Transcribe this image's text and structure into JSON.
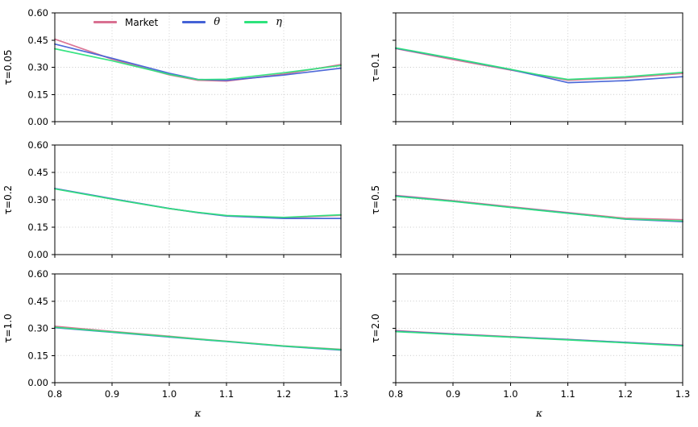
{
  "chart_data": {
    "type": "line",
    "layout": {
      "rows": 3,
      "cols": 2,
      "grid": "dotted",
      "legend_position": "top-left-panel, frameless"
    },
    "xlabel": "κ",
    "xlim": [
      0.8,
      1.3
    ],
    "ylim": [
      0.0,
      0.6
    ],
    "xticks": [
      "0.8",
      "0.9",
      "1.0",
      "1.1",
      "1.2",
      "1.3"
    ],
    "yticks": [
      "0.00",
      "0.15",
      "0.30",
      "0.45",
      "0.60"
    ],
    "x": [
      0.8,
      0.9,
      1.0,
      1.05,
      1.1,
      1.2,
      1.3
    ],
    "legend": [
      {
        "name": "Market",
        "color": "#d97091"
      },
      {
        "name": "θ",
        "color": "#4462d6"
      },
      {
        "name": "η",
        "color": "#2de37c"
      }
    ],
    "panels": [
      {
        "ylabel": "τ=0.05",
        "series": [
          {
            "name": "Market",
            "values": [
              0.455,
              0.345,
              0.258,
              0.228,
              0.224,
              0.262,
              0.315
            ]
          },
          {
            "name": "θ",
            "values": [
              0.428,
              0.35,
              0.267,
              0.233,
              0.228,
              0.257,
              0.295
            ]
          },
          {
            "name": "η",
            "values": [
              0.402,
              0.336,
              0.261,
              0.232,
              0.234,
              0.27,
              0.31
            ]
          }
        ]
      },
      {
        "ylabel": "τ=0.1",
        "series": [
          {
            "name": "Market",
            "values": [
              0.403,
              0.342,
              0.285,
              0.257,
              0.228,
              0.242,
              0.266
            ]
          },
          {
            "name": "θ",
            "values": [
              0.405,
              0.348,
              0.287,
              0.252,
              0.215,
              0.226,
              0.248
            ]
          },
          {
            "name": "η",
            "values": [
              0.407,
              0.349,
              0.289,
              0.258,
              0.233,
              0.247,
              0.272
            ]
          }
        ]
      },
      {
        "ylabel": "τ=0.2",
        "series": [
          {
            "name": "Market",
            "values": [
              0.361,
              0.305,
              0.252,
              0.23,
              0.213,
              0.202,
              0.215
            ]
          },
          {
            "name": "θ",
            "values": [
              0.362,
              0.306,
              0.253,
              0.23,
              0.211,
              0.198,
              0.198
            ]
          },
          {
            "name": "η",
            "values": [
              0.36,
              0.304,
              0.252,
              0.231,
              0.214,
              0.204,
              0.218
            ]
          }
        ]
      },
      {
        "ylabel": "τ=0.5",
        "series": [
          {
            "name": "Market",
            "values": [
              0.324,
              0.295,
              0.262,
              0.246,
              0.23,
              0.199,
              0.191
            ]
          },
          {
            "name": "θ",
            "values": [
              0.321,
              0.292,
              0.259,
              0.243,
              0.227,
              0.194,
              0.18
            ]
          },
          {
            "name": "η",
            "values": [
              0.319,
              0.291,
              0.258,
              0.242,
              0.226,
              0.195,
              0.184
            ]
          }
        ]
      },
      {
        "ylabel": "τ=1.0",
        "series": [
          {
            "name": "Market",
            "values": [
              0.311,
              0.283,
              0.256,
              0.242,
              0.229,
              0.203,
              0.184
            ]
          },
          {
            "name": "θ",
            "values": [
              0.304,
              0.278,
              0.252,
              0.239,
              0.227,
              0.201,
              0.18
            ]
          },
          {
            "name": "η",
            "values": [
              0.306,
              0.28,
              0.254,
              0.24,
              0.228,
              0.202,
              0.182
            ]
          }
        ]
      },
      {
        "ylabel": "τ=2.0",
        "series": [
          {
            "name": "Market",
            "values": [
              0.287,
              0.27,
              0.254,
              0.246,
              0.239,
              0.222,
              0.207
            ]
          },
          {
            "name": "θ",
            "values": [
              0.284,
              0.268,
              0.252,
              0.245,
              0.238,
              0.222,
              0.205
            ]
          },
          {
            "name": "η",
            "values": [
              0.282,
              0.266,
              0.251,
              0.243,
              0.236,
              0.22,
              0.203
            ]
          }
        ]
      }
    ],
    "style": {
      "grid_color": "#c9c9c9",
      "spine_color": "#000000",
      "tick_label_color": "#000000",
      "background": "#ffffff"
    }
  }
}
